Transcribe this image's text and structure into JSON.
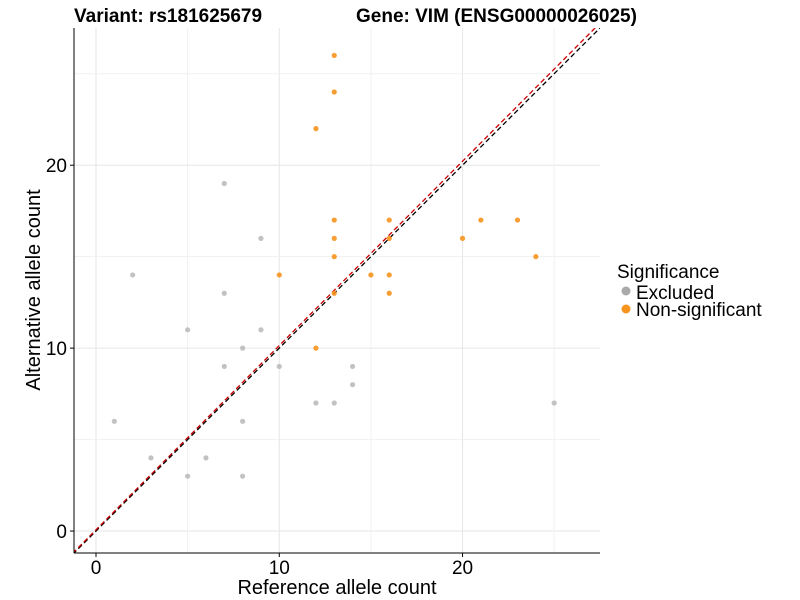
{
  "chart_data": {
    "type": "scatter",
    "title_left": "Variant: rs181625679",
    "title_right": "Gene: VIM (ENSG00000026025)",
    "xlabel": "Reference allele count",
    "ylabel": "Alternative allele count",
    "xlim": [
      -1.2,
      27.5
    ],
    "ylim": [
      -1.2,
      27.5
    ],
    "x_ticks": [
      0,
      10,
      20
    ],
    "y_ticks": [
      0,
      10,
      20
    ],
    "grid": true,
    "reference_lines": [
      "y = x (black, dashed)",
      "fitted (red, dashed)"
    ],
    "legend": {
      "title": "Significance",
      "position": "right",
      "entries": [
        {
          "label": "Excluded",
          "color": "#AAAAAA"
        },
        {
          "label": "Non-significant",
          "color": "#F7941D"
        }
      ]
    },
    "series": [
      {
        "name": "Excluded",
        "color": "#BBBBBB",
        "points": [
          [
            1,
            6
          ],
          [
            2,
            14
          ],
          [
            3,
            4
          ],
          [
            5,
            3
          ],
          [
            5,
            11
          ],
          [
            6,
            4
          ],
          [
            7,
            9
          ],
          [
            7,
            13
          ],
          [
            7,
            19
          ],
          [
            8,
            3
          ],
          [
            8,
            6
          ],
          [
            8,
            10
          ],
          [
            9,
            11
          ],
          [
            9,
            16
          ],
          [
            10,
            9
          ],
          [
            12,
            7
          ],
          [
            13,
            7
          ],
          [
            14,
            8
          ],
          [
            14,
            9
          ],
          [
            25,
            7
          ]
        ]
      },
      {
        "name": "Non-significant",
        "color": "#F7941D",
        "points": [
          [
            10,
            14
          ],
          [
            12,
            10
          ],
          [
            12,
            22
          ],
          [
            13,
            13
          ],
          [
            13,
            15
          ],
          [
            13,
            16
          ],
          [
            13,
            17
          ],
          [
            13,
            24
          ],
          [
            13,
            26
          ],
          [
            15,
            14
          ],
          [
            16,
            13
          ],
          [
            16,
            14
          ],
          [
            16,
            16
          ],
          [
            16,
            17
          ],
          [
            20,
            16
          ],
          [
            21,
            17
          ],
          [
            23,
            17
          ],
          [
            24,
            15
          ]
        ]
      }
    ]
  }
}
